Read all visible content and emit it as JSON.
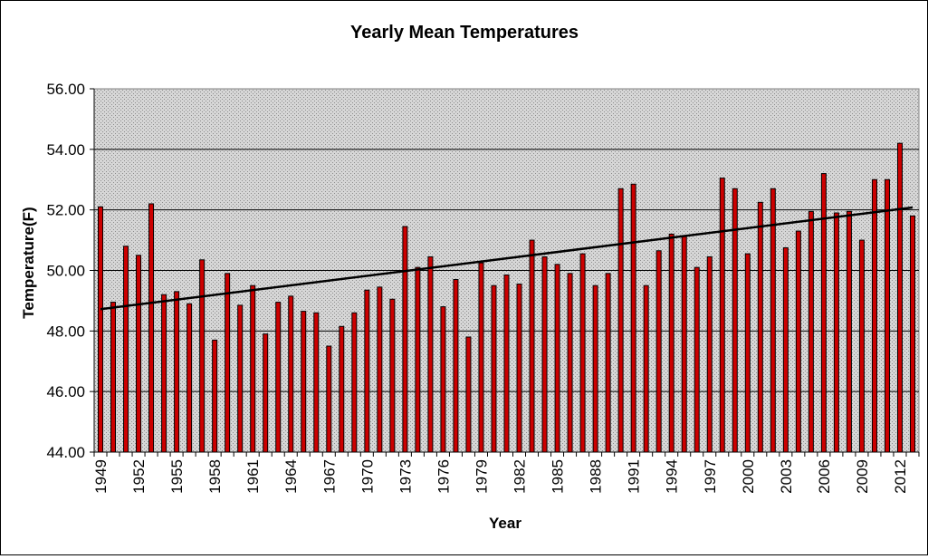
{
  "chart_data": {
    "type": "bar",
    "title": "Yearly Mean Temperatures",
    "xlabel": "Year",
    "ylabel": "Temperature(F)",
    "ylim": [
      44,
      56
    ],
    "yticks": [
      "44.00",
      "46.00",
      "48.00",
      "50.00",
      "52.00",
      "54.00",
      "56.00"
    ],
    "ytick_values": [
      44,
      46,
      48,
      50,
      52,
      54,
      56
    ],
    "x_tick_labels": [
      "1949",
      "1952",
      "1955",
      "1958",
      "1961",
      "1964",
      "1967",
      "1970",
      "1973",
      "1976",
      "1979",
      "1982",
      "1985",
      "1988",
      "1991",
      "1994",
      "1997",
      "2000",
      "2003",
      "2006",
      "2009",
      "2012"
    ],
    "grid": true,
    "legend": "none",
    "series": [
      {
        "name": "Yearly Mean Temperature",
        "color": "#cc0000",
        "years": [
          1949,
          1950,
          1951,
          1952,
          1953,
          1954,
          1955,
          1956,
          1957,
          1958,
          1959,
          1960,
          1961,
          1962,
          1963,
          1964,
          1965,
          1966,
          1967,
          1968,
          1969,
          1970,
          1971,
          1972,
          1973,
          1974,
          1975,
          1976,
          1977,
          1978,
          1979,
          1980,
          1981,
          1982,
          1983,
          1984,
          1985,
          1986,
          1987,
          1988,
          1989,
          1990,
          1991,
          1992,
          1993,
          1994,
          1995,
          1996,
          1997,
          1998,
          1999,
          2000,
          2001,
          2002,
          2003,
          2004,
          2005,
          2006,
          2007,
          2008,
          2009,
          2010,
          2011,
          2012,
          2013
        ],
        "values": [
          52.1,
          48.95,
          50.8,
          50.5,
          52.2,
          49.2,
          49.3,
          48.9,
          50.35,
          47.7,
          49.9,
          48.85,
          49.5,
          47.9,
          48.95,
          49.15,
          48.65,
          48.6,
          47.5,
          48.15,
          48.6,
          49.35,
          49.45,
          49.05,
          51.45,
          50.1,
          50.45,
          48.8,
          49.7,
          47.8,
          50.25,
          49.5,
          49.85,
          49.55,
          51.0,
          50.45,
          50.2,
          49.9,
          50.55,
          49.5,
          49.9,
          52.7,
          52.85,
          49.5,
          50.65,
          51.2,
          51.15,
          50.1,
          50.45,
          53.05,
          52.7,
          50.55,
          52.25,
          52.7,
          50.75,
          51.3,
          51.95,
          53.2,
          51.9,
          51.95,
          51.0,
          53.0,
          53.0,
          54.2,
          51.8
        ]
      },
      {
        "name": "Linear trend",
        "color": "#000000",
        "years": [
          1949,
          2013
        ],
        "values": [
          48.72,
          52.08
        ]
      }
    ]
  }
}
